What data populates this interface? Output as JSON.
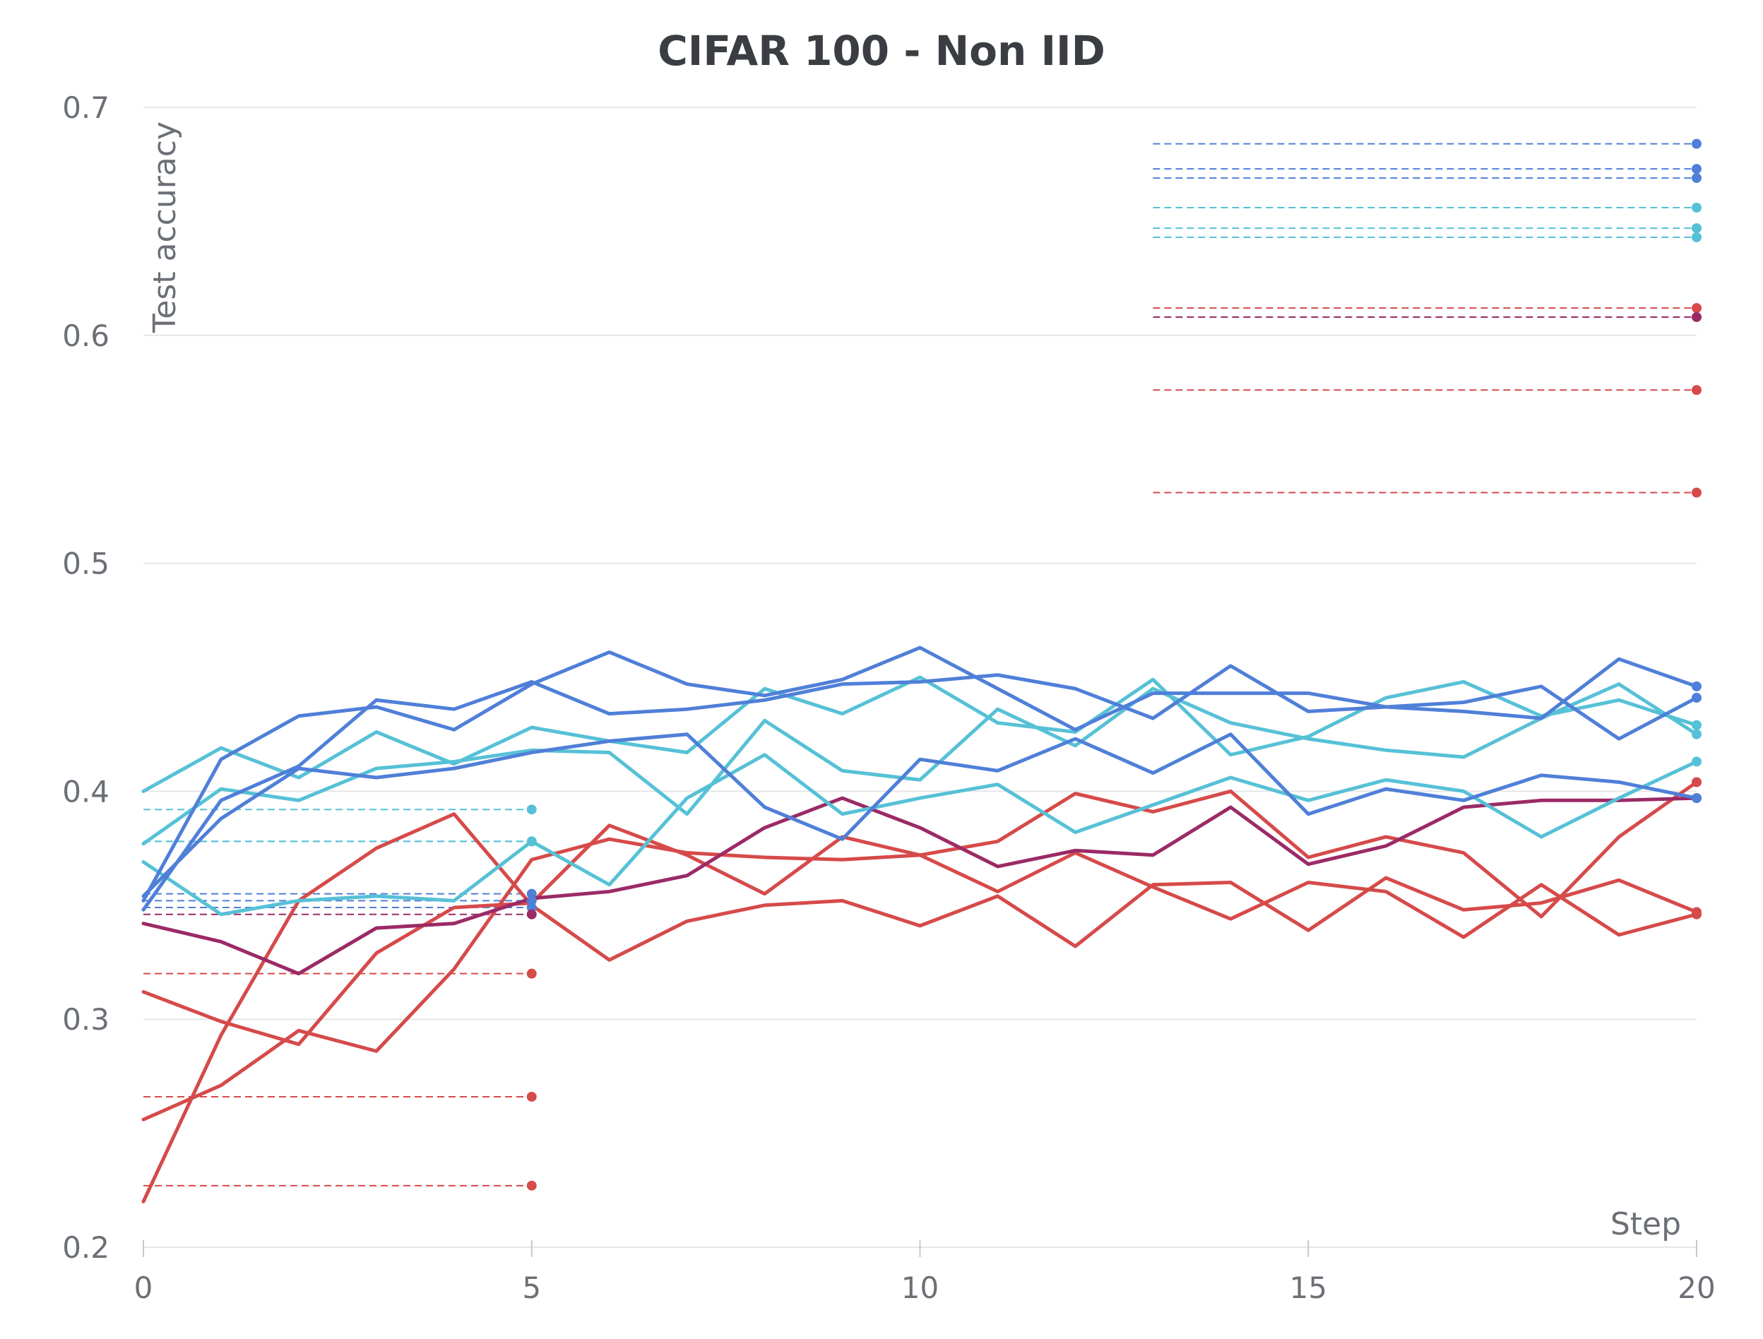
{
  "chart_data": {
    "type": "line",
    "title": "CIFAR 100 - Non IID",
    "xlabel": "Step",
    "ylabel": "Test accuracy",
    "xlim": [
      0,
      20
    ],
    "ylim": [
      0.2,
      0.7
    ],
    "xticks": [
      0,
      5,
      10,
      15,
      20
    ],
    "xtick_labels": [
      "0",
      "5",
      "10",
      "15",
      "20"
    ],
    "yticks": [
      0.2,
      0.3,
      0.4,
      0.5,
      0.6,
      0.7
    ],
    "ytick_labels": [
      "0.2",
      "0.3",
      "0.4",
      "0.5",
      "0.6",
      "0.7"
    ],
    "grid": true,
    "legend": "none",
    "colors": {
      "blue": "#4f7fd8",
      "cyan": "#56c1d6",
      "red": "#d64a4a",
      "purple": "#9b2a66"
    },
    "x": [
      0,
      1,
      2,
      3,
      4,
      5,
      6,
      7,
      8,
      9,
      10,
      11,
      12,
      13,
      14,
      15,
      16,
      17,
      18,
      19,
      20
    ],
    "series": [
      {
        "color": "blue",
        "values": [
          0.352,
          0.414,
          0.433,
          0.437,
          0.427,
          0.447,
          0.461,
          0.447,
          0.442,
          0.449,
          0.463,
          0.445,
          0.427,
          0.443,
          0.443,
          0.443,
          0.437,
          0.435,
          0.432,
          0.458,
          0.446
        ]
      },
      {
        "color": "blue",
        "values": [
          0.354,
          0.388,
          0.41,
          0.406,
          0.41,
          0.417,
          0.422,
          0.425,
          0.393,
          0.379,
          0.414,
          0.409,
          0.423,
          0.408,
          0.425,
          0.39,
          0.401,
          0.396,
          0.407,
          0.404,
          0.397
        ]
      },
      {
        "color": "blue",
        "values": [
          0.348,
          0.396,
          0.411,
          0.44,
          0.436,
          0.448,
          0.434,
          0.436,
          0.44,
          0.447,
          0.448,
          0.451,
          0.445,
          0.432,
          0.455,
          0.435,
          0.437,
          0.439,
          0.446,
          0.423,
          0.441
        ]
      },
      {
        "color": "cyan",
        "values": [
          0.4,
          0.419,
          0.406,
          0.426,
          0.412,
          0.428,
          0.422,
          0.417,
          0.445,
          0.434,
          0.45,
          0.43,
          0.426,
          0.449,
          0.416,
          0.424,
          0.441,
          0.448,
          0.433,
          0.44,
          0.429
        ]
      },
      {
        "color": "cyan",
        "values": [
          0.377,
          0.401,
          0.396,
          0.41,
          0.413,
          0.418,
          0.417,
          0.39,
          0.431,
          0.409,
          0.405,
          0.436,
          0.42,
          0.445,
          0.43,
          0.423,
          0.418,
          0.415,
          0.432,
          0.447,
          0.425
        ]
      },
      {
        "color": "cyan",
        "values": [
          0.369,
          0.346,
          0.352,
          0.354,
          0.352,
          0.378,
          0.359,
          0.397,
          0.416,
          0.39,
          0.397,
          0.403,
          0.382,
          0.394,
          0.406,
          0.396,
          0.405,
          0.4,
          0.38,
          0.397,
          0.413
        ]
      },
      {
        "color": "purple",
        "values": [
          0.342,
          0.334,
          0.32,
          0.34,
          0.342,
          0.353,
          0.356,
          0.363,
          0.384,
          0.397,
          0.384,
          0.367,
          0.374,
          0.372,
          0.393,
          0.368,
          0.376,
          0.393,
          0.396,
          0.396,
          0.397
        ]
      },
      {
        "color": "red",
        "values": [
          0.312,
          0.299,
          0.289,
          0.329,
          0.349,
          0.351,
          0.385,
          0.372,
          0.355,
          0.38,
          0.372,
          0.356,
          0.373,
          0.358,
          0.344,
          0.36,
          0.356,
          0.336,
          0.359,
          0.337,
          0.346
        ]
      },
      {
        "color": "red",
        "values": [
          0.256,
          0.271,
          0.295,
          0.286,
          0.322,
          0.37,
          0.379,
          0.373,
          0.371,
          0.37,
          0.372,
          0.378,
          0.399,
          0.391,
          0.4,
          0.371,
          0.38,
          0.373,
          0.345,
          0.38,
          0.404
        ]
      },
      {
        "color": "red",
        "values": [
          0.22,
          0.293,
          0.352,
          0.375,
          0.39,
          0.35,
          0.326,
          0.343,
          0.35,
          0.352,
          0.341,
          0.354,
          0.332,
          0.359,
          0.36,
          0.339,
          0.362,
          0.348,
          0.351,
          0.361,
          0.347
        ]
      }
    ],
    "reference_lines": [
      {
        "color": "blue",
        "y": 0.684,
        "x_start": 13,
        "x_end": 20
      },
      {
        "color": "blue",
        "y": 0.673,
        "x_start": 13,
        "x_end": 20
      },
      {
        "color": "blue",
        "y": 0.669,
        "x_start": 13,
        "x_end": 20
      },
      {
        "color": "cyan",
        "y": 0.656,
        "x_start": 13,
        "x_end": 20
      },
      {
        "color": "cyan",
        "y": 0.647,
        "x_start": 13,
        "x_end": 20
      },
      {
        "color": "cyan",
        "y": 0.643,
        "x_start": 13,
        "x_end": 20
      },
      {
        "color": "red",
        "y": 0.612,
        "x_start": 13,
        "x_end": 20
      },
      {
        "color": "purple",
        "y": 0.608,
        "x_start": 13,
        "x_end": 20
      },
      {
        "color": "red",
        "y": 0.576,
        "x_start": 13,
        "x_end": 20
      },
      {
        "color": "red",
        "y": 0.531,
        "x_start": 13,
        "x_end": 20
      },
      {
        "color": "cyan",
        "y": 0.392,
        "x_start": 0,
        "x_end": 5
      },
      {
        "color": "cyan",
        "y": 0.378,
        "x_start": 0,
        "x_end": 5
      },
      {
        "color": "cyan",
        "y": 0.378,
        "x_start": 0,
        "x_end": 5
      },
      {
        "color": "blue",
        "y": 0.355,
        "x_start": 0,
        "x_end": 5
      },
      {
        "color": "blue",
        "y": 0.352,
        "x_start": 0,
        "x_end": 5
      },
      {
        "color": "blue",
        "y": 0.349,
        "x_start": 0,
        "x_end": 5
      },
      {
        "color": "purple",
        "y": 0.346,
        "x_start": 0,
        "x_end": 5
      },
      {
        "color": "red",
        "y": 0.32,
        "x_start": 0,
        "x_end": 5
      },
      {
        "color": "red",
        "y": 0.266,
        "x_start": 0,
        "x_end": 5
      },
      {
        "color": "red",
        "y": 0.227,
        "x_start": 0,
        "x_end": 5
      }
    ]
  }
}
